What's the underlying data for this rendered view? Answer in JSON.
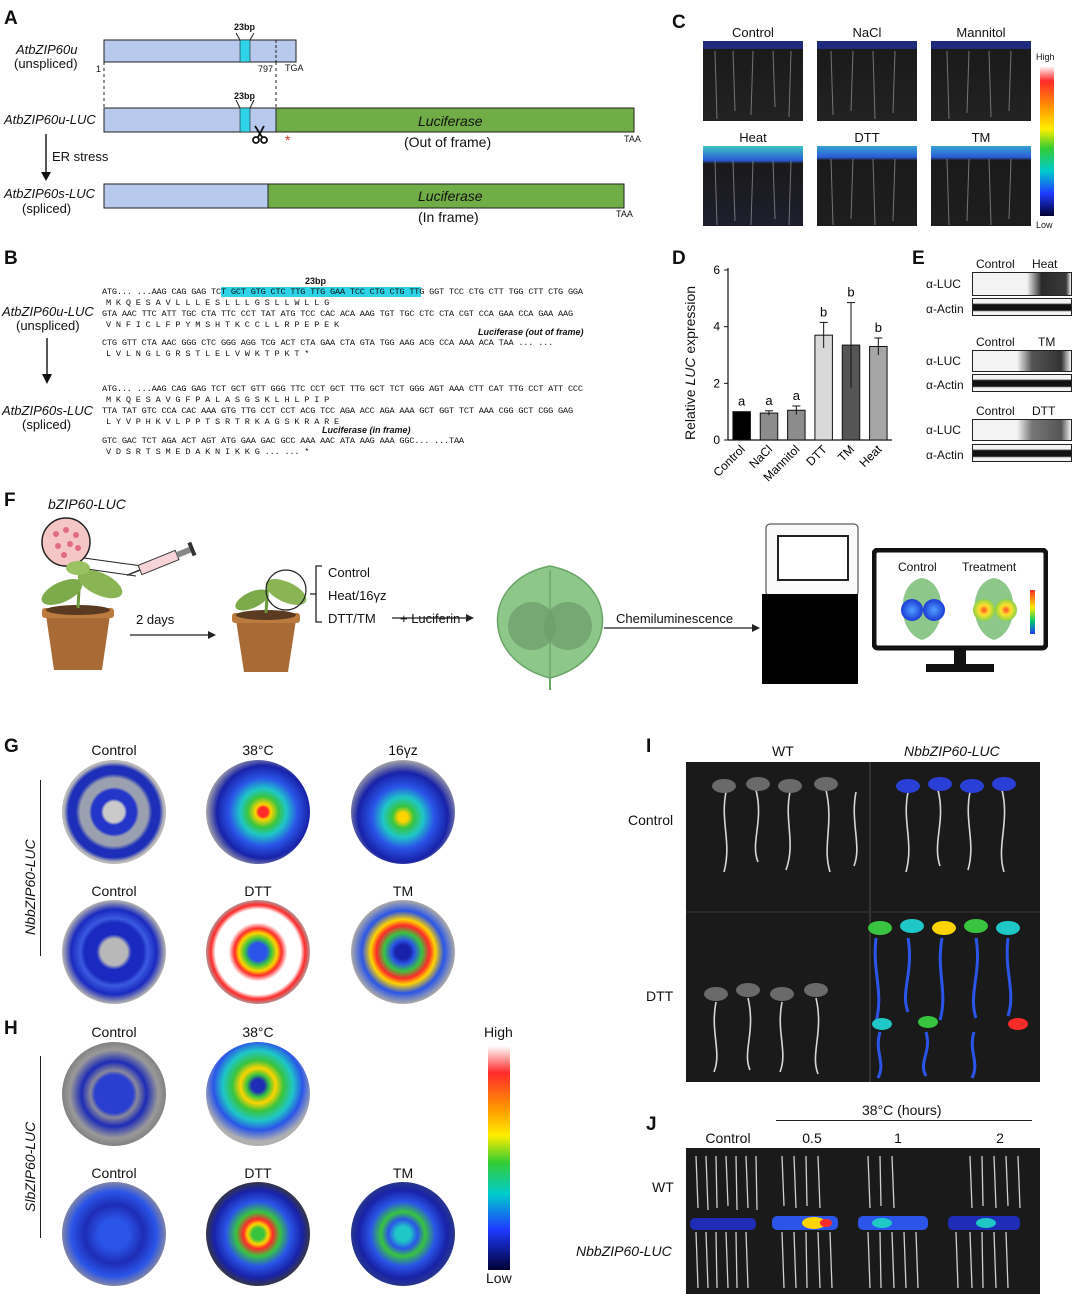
{
  "panels": {
    "A": "A",
    "B": "B",
    "C": "C",
    "D": "D",
    "E": "E",
    "F": "F",
    "G": "G",
    "H": "H",
    "I": "I",
    "J": "J"
  },
  "panelA": {
    "row1_name": "AtbZIP60u",
    "row1_sub": "(unspliced)",
    "row2_name": "AtbZIP60u-LUC",
    "row3_name": "AtbZIP60s-LUC",
    "row3_sub": "(spliced)",
    "bp23": "23bp",
    "pos1": "1",
    "pos797": "797",
    "tga": "TGA",
    "luc": "Luciferase",
    "out_frame": "(Out of frame)",
    "in_frame": "(In frame)",
    "taa": "TAA",
    "er_stress": "ER stress",
    "star": "*"
  },
  "panelB": {
    "row1_name": "AtbZIP60u-LUC",
    "row1_sub": "(unspliced)",
    "row2_name": "AtbZIP60s-LUC",
    "row2_sub": "(spliced)",
    "bp23": "23bp",
    "u_l1a": "ATG... ...AAG CAG GAG T",
    "u_l1b": "CT GCT GTG CTC TTG TTG GAA TCC CTG",
    "u_l1c": " CTG TTG GGT TCC CTG CTT TGG CTT CTG GGA",
    "u_l2": "M      K      Q      E      S      A      V      L      L      L      E      S      L      L      L      G      S      L      L      W      L      L      G",
    "u_l3": "GTA AAC TTC ATT TGC CTA TTC CCT TAT ATG TCC CAC ACA AAG TGT TGC CTC CTA CGT CCA GAA CCA GAA AAG",
    "u_l4": "V      N      F      I      C      L      F      P      Y      M      S      H      T      K      C      C      L      L      R      P      E      P      E      K",
    "u_luc_note": "Luciferase (out of frame)",
    "u_l5": "CTG GTT CTA AAC GGG CTC GGG AGG TCG ACT CTA GAA CTA GTA TGG AAG ACG CCA AAA ACA TAA ... ...",
    "u_l6": "L      V      L      N      G      L      G      R      S      T      L      E      L      V      W      K      T      P      K      T      *",
    "s_l1": "ATG... ...AAG CAG GAG TCT GCT GTT GGG TTC CCT GCT TTG GCT TCT GGG AGT AAA CTT CAT TTG CCT ATT CCC",
    "s_l2": "M      K      Q      E      S      A      V      G      F      P      A      L      A      S      G      S      K      L      H      L      P      I      P",
    "s_l3": "TTA TAT GTC CCA CAC AAA GTG TTG CCT CCT ACG TCC AGA ACC AGA AAA GCT GGT TCT AAA CGG GCT CGG GAG",
    "s_l4": "L      Y      V      P      H      K      V      L      P      P      T      S      R      T      R      K      A      G      S      K      R      A      R      E",
    "s_luc_note": "Luciferase (in frame)",
    "s_l5": "GTC GAC TCT AGA ACT AGT ATG GAA GAC GCC AAA AAC ATA AAG AAA GGC... ...TAA",
    "s_l6": "V      D      S      R      T      S      M      E      D      A      K      N      I      K      K      G      ... ...  *"
  },
  "panelC": {
    "labels": [
      "Control",
      "NaCl",
      "Mannitol",
      "Heat",
      "DTT",
      "TM"
    ],
    "scale_high": "High",
    "scale_low": "Low"
  },
  "panelE": {
    "blocks": [
      {
        "c1": "Control",
        "c2": "Heat"
      },
      {
        "c1": "Control",
        "c2": "TM"
      },
      {
        "c1": "Control",
        "c2": "DTT"
      }
    ],
    "row1": "α-LUC",
    "row2": "α-Actin"
  },
  "panelF": {
    "construct": "bZIP60-LUC",
    "two_days": "2 days",
    "treatments": [
      "Control",
      "Heat/16γz",
      "DTT/TM"
    ],
    "luciferin": "+ Luciferin",
    "chemi": "Chemiluminescence",
    "screen_control": "Control",
    "screen_treatment": "Treatment"
  },
  "panelG": {
    "side": "NbbZIP60-LUC",
    "row1": [
      "Control",
      "38°C",
      "16γz"
    ],
    "row2": [
      "Control",
      "DTT",
      "TM"
    ]
  },
  "panelH": {
    "side": "SlbZIP60-LUC",
    "row1": [
      "Control",
      "38°C"
    ],
    "row2": [
      "Control",
      "DTT",
      "TM"
    ],
    "scale_high": "High",
    "scale_low": "Low"
  },
  "panelI": {
    "col_wt": "WT",
    "col_luc": "NbbZIP60-LUC",
    "row_control": "Control",
    "row_dtt": "DTT"
  },
  "panelJ": {
    "header": "38°C (hours)",
    "cols": [
      "Control",
      "0.5",
      "1",
      "2"
    ],
    "row_wt": "WT",
    "row_luc": "NbbZIP60-LUC"
  },
  "chart_data": {
    "type": "bar",
    "categories": [
      "Control",
      "NaCl",
      "Mannitol",
      "DTT",
      "TM",
      "Heat"
    ],
    "values": [
      1.0,
      0.95,
      1.05,
      3.7,
      3.35,
      3.3
    ],
    "errors": [
      0.0,
      0.08,
      0.15,
      0.45,
      1.5,
      0.3
    ],
    "letters": [
      "a",
      "a",
      "a",
      "b",
      "b",
      "b"
    ],
    "colors": [
      "#000000",
      "#8c8c8c",
      "#8c8c8c",
      "#d9d9d9",
      "#555555",
      "#a6a6a6"
    ],
    "ylabel_pre": "Relative ",
    "ylabel_ital": "LUC",
    "ylabel_post": " expression",
    "yticks": [
      "0",
      "2",
      "4",
      "6"
    ],
    "ylim": [
      0,
      6
    ]
  }
}
